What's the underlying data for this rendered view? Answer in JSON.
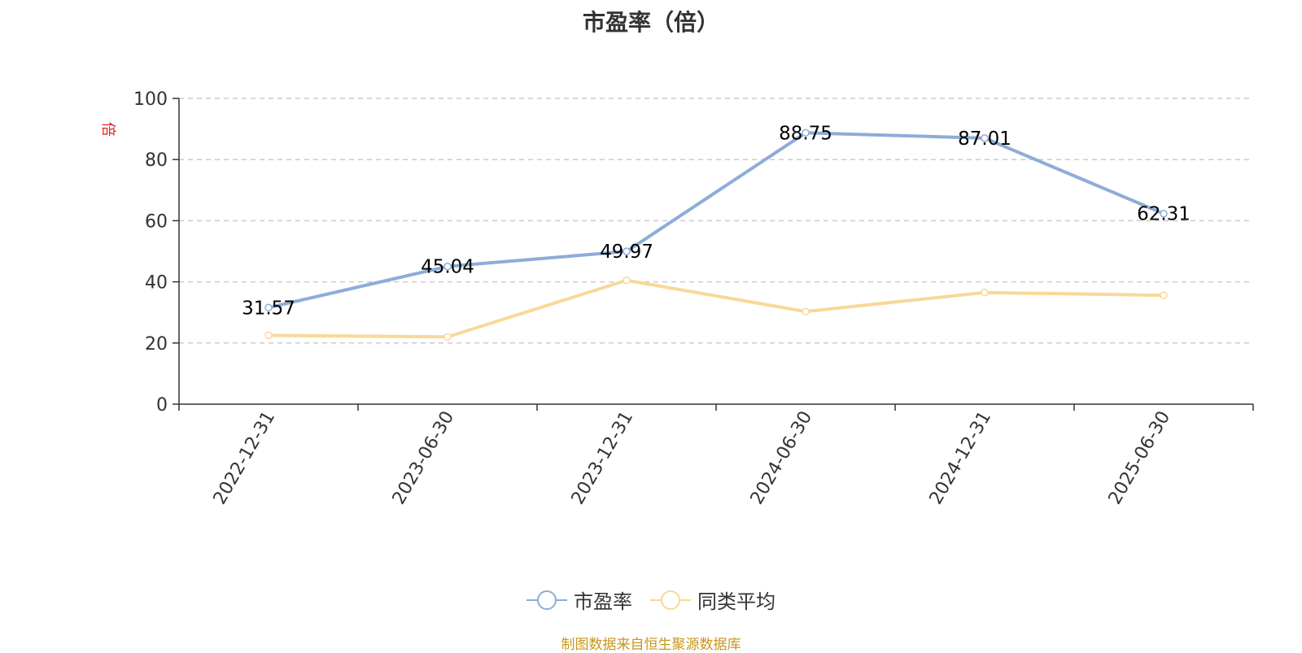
{
  "title": "市盈率（倍）",
  "y_unit": "倍",
  "footer": "制图数据来自恒生聚源数据库",
  "legend": [
    {
      "name": "市盈率",
      "color": "#8eacd8"
    },
    {
      "name": "同类平均",
      "color": "#f9d898"
    }
  ],
  "chart_data": {
    "type": "line",
    "title": "市盈率（倍）",
    "ylabel": "倍",
    "xlabel": "",
    "categories": [
      "2022-12-31",
      "2023-06-30",
      "2023-12-31",
      "2024-06-30",
      "2024-12-31",
      "2025-06-30"
    ],
    "ylim": [
      0,
      100
    ],
    "yticks": [
      0,
      20,
      40,
      60,
      80,
      100
    ],
    "grid": true,
    "legend_position": "bottom-center",
    "series": [
      {
        "name": "市盈率",
        "color": "#8eacd8",
        "values": [
          31.57,
          45.04,
          49.97,
          88.75,
          87.01,
          62.31
        ],
        "labels": [
          "31.57",
          "45.04",
          "49.97",
          "88.75",
          "87.01",
          "62.31"
        ]
      },
      {
        "name": "同类平均",
        "color": "#f9d898",
        "values": [
          22.5,
          22.0,
          40.5,
          30.3,
          36.5,
          35.6
        ]
      }
    ]
  }
}
